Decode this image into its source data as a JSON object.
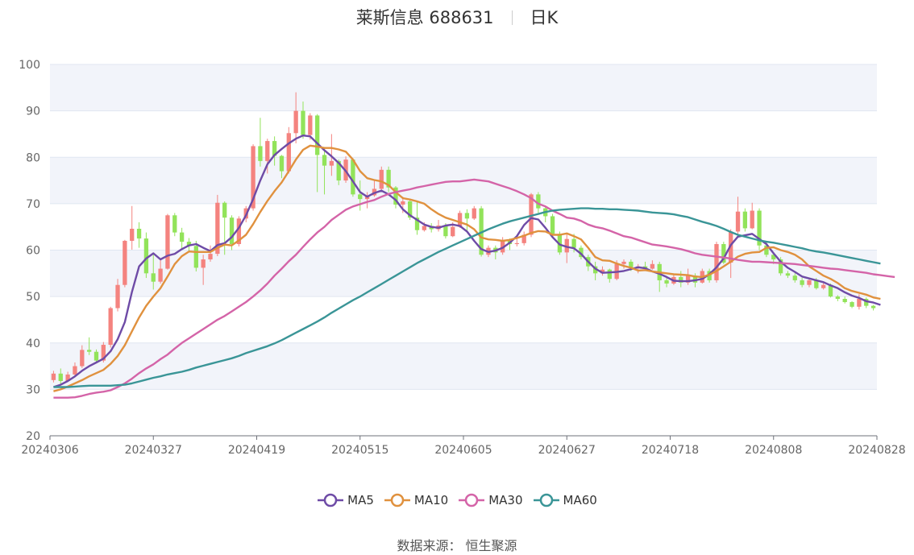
{
  "header": {
    "name": "莱斯信息 688631",
    "period": "日K"
  },
  "source": "数据来源： 恒生聚源",
  "chart_data": {
    "type": "candlestick",
    "ylim": [
      20,
      100
    ],
    "yticks": [
      "20",
      "30",
      "40",
      "50",
      "60",
      "70",
      "80",
      "90",
      "100"
    ],
    "xticks": [
      "20240306",
      "20240327",
      "20240419",
      "20240515",
      "20240605",
      "20240627",
      "20240718",
      "20240808",
      "20240828"
    ],
    "grid": true,
    "band_color": "#f2f4fa",
    "up_color": "#f4837f",
    "down_color": "#92e35a",
    "candles": [
      [
        32.0,
        33.4,
        34.0,
        31.5
      ],
      [
        33.4,
        31.8,
        34.5,
        31.2
      ],
      [
        31.8,
        33.2,
        33.8,
        31.6
      ],
      [
        33.2,
        35.0,
        35.8,
        32.8
      ],
      [
        35.0,
        38.5,
        39.5,
        34.6
      ],
      [
        38.5,
        38.1,
        41.2,
        37.4
      ],
      [
        38.1,
        36.2,
        38.6,
        35.8
      ],
      [
        36.2,
        39.6,
        40.2,
        35.8
      ],
      [
        39.6,
        47.5,
        47.8,
        39.0
      ],
      [
        47.5,
        52.5,
        53.8,
        46.8
      ],
      [
        52.5,
        62.0,
        62.2,
        52.0
      ],
      [
        62.0,
        64.6,
        69.5,
        60.1
      ],
      [
        64.6,
        62.5,
        66.0,
        60.5
      ],
      [
        62.5,
        55.0,
        63.8,
        54.0
      ],
      [
        55.0,
        53.2,
        59.3,
        51.5
      ],
      [
        53.2,
        56.0,
        58.0,
        52.8
      ],
      [
        56.0,
        67.5,
        67.8,
        55.8
      ],
      [
        67.5,
        63.8,
        68.0,
        63.0
      ],
      [
        63.8,
        61.8,
        64.8,
        60.0
      ],
      [
        61.8,
        60.9,
        62.6,
        59.5
      ],
      [
        60.9,
        56.2,
        62.0,
        55.4
      ],
      [
        56.2,
        58.0,
        59.0,
        52.5
      ],
      [
        58.0,
        59.2,
        61.0,
        57.5
      ],
      [
        59.2,
        70.2,
        71.9,
        58.7
      ],
      [
        70.2,
        67.0,
        70.5,
        59.0
      ],
      [
        67.0,
        61.3,
        67.5,
        60.0
      ],
      [
        61.3,
        66.8,
        67.3,
        60.8
      ],
      [
        66.8,
        69.0,
        69.5,
        66.0
      ],
      [
        69.0,
        82.4,
        82.8,
        68.5
      ],
      [
        82.4,
        79.2,
        88.5,
        78.0
      ],
      [
        79.2,
        83.5,
        84.0,
        76.5
      ],
      [
        83.5,
        80.3,
        84.5,
        78.2
      ],
      [
        80.3,
        77.0,
        80.5,
        75.5
      ],
      [
        77.0,
        85.2,
        86.5,
        76.5
      ],
      [
        85.2,
        90.0,
        94.0,
        83.0
      ],
      [
        90.0,
        84.8,
        92.0,
        84.0
      ],
      [
        84.8,
        89.0,
        89.5,
        83.8
      ],
      [
        89.0,
        80.5,
        89.3,
        72.5
      ],
      [
        80.5,
        78.2,
        82.0,
        72.0
      ],
      [
        78.2,
        79.2,
        85.0,
        76.0
      ],
      [
        79.2,
        75.0,
        79.5,
        74.0
      ],
      [
        75.0,
        79.5,
        80.2,
        74.5
      ],
      [
        79.5,
        72.0,
        79.8,
        71.5
      ],
      [
        72.0,
        71.0,
        75.0,
        68.5
      ],
      [
        71.0,
        71.8,
        72.5,
        69.0
      ],
      [
        71.8,
        73.2,
        75.0,
        71.5
      ],
      [
        73.2,
        77.3,
        78.0,
        73.0
      ],
      [
        77.3,
        73.5,
        78.0,
        72.5
      ],
      [
        73.5,
        69.8,
        73.8,
        69.0
      ],
      [
        69.8,
        70.5,
        71.5,
        68.0
      ],
      [
        70.5,
        67.0,
        71.0,
        66.5
      ],
      [
        67.0,
        64.3,
        70.5,
        63.3
      ],
      [
        64.3,
        65.2,
        66.0,
        64.0
      ],
      [
        65.2,
        64.5,
        65.8,
        63.8
      ],
      [
        64.5,
        65.3,
        66.5,
        64.0
      ],
      [
        65.3,
        63.0,
        65.8,
        62.5
      ],
      [
        63.0,
        65.0,
        66.0,
        62.8
      ],
      [
        65.0,
        68.0,
        68.5,
        64.8
      ],
      [
        68.0,
        66.8,
        68.8,
        64.0
      ],
      [
        66.8,
        69.0,
        69.5,
        66.5
      ],
      [
        69.0,
        59.0,
        69.5,
        58.6
      ],
      [
        59.0,
        60.5,
        61.0,
        58.5
      ],
      [
        60.5,
        59.5,
        61.0,
        58.0
      ],
      [
        59.5,
        62.0,
        62.8,
        59.0
      ],
      [
        62.0,
        61.3,
        62.5,
        60.0
      ],
      [
        61.3,
        61.5,
        63.0,
        60.8
      ],
      [
        61.5,
        63.3,
        64.0,
        61.0
      ],
      [
        63.3,
        72.0,
        72.3,
        62.8
      ],
      [
        72.0,
        69.0,
        72.5,
        68.0
      ],
      [
        69.0,
        67.3,
        69.5,
        66.0
      ],
      [
        67.3,
        63.5,
        67.8,
        63.0
      ],
      [
        63.5,
        59.5,
        64.0,
        59.0
      ],
      [
        59.5,
        62.4,
        63.5,
        57.2
      ],
      [
        62.4,
        60.5,
        63.5,
        59.5
      ],
      [
        60.5,
        58.5,
        61.0,
        58.0
      ],
      [
        58.5,
        56.5,
        59.0,
        55.5
      ],
      [
        56.5,
        55.0,
        57.5,
        53.5
      ],
      [
        55.0,
        55.8,
        56.5,
        54.5
      ],
      [
        55.8,
        53.8,
        56.0,
        53.0
      ],
      [
        53.8,
        57.0,
        57.8,
        53.5
      ],
      [
        57.0,
        57.5,
        58.0,
        56.0
      ],
      [
        57.5,
        56.3,
        58.0,
        55.5
      ],
      [
        56.3,
        56.5,
        57.0,
        55.0
      ],
      [
        56.5,
        56.0,
        57.5,
        55.5
      ],
      [
        56.0,
        57.0,
        57.8,
        55.8
      ],
      [
        57.0,
        53.5,
        57.5,
        51.0
      ],
      [
        53.5,
        52.8,
        54.0,
        52.0
      ],
      [
        52.8,
        54.2,
        54.8,
        52.5
      ],
      [
        54.2,
        53.0,
        55.5,
        52.0
      ],
      [
        53.0,
        54.5,
        56.0,
        52.5
      ],
      [
        54.5,
        53.0,
        55.0,
        52.0
      ],
      [
        53.0,
        55.5,
        56.0,
        52.8
      ],
      [
        55.5,
        53.5,
        56.0,
        53.0
      ],
      [
        53.5,
        61.3,
        61.8,
        53.0
      ],
      [
        61.3,
        57.3,
        61.8,
        57.0
      ],
      [
        57.3,
        64.0,
        64.5,
        54.0
      ],
      [
        64.0,
        68.3,
        71.5,
        63.5
      ],
      [
        68.3,
        64.7,
        69.0,
        64.0
      ],
      [
        64.7,
        68.5,
        70.2,
        64.5
      ],
      [
        68.5,
        61.0,
        69.0,
        60.0
      ],
      [
        61.0,
        59.0,
        62.0,
        58.5
      ],
      [
        59.0,
        58.0,
        59.5,
        57.0
      ],
      [
        58.0,
        55.0,
        58.5,
        54.5
      ],
      [
        55.0,
        54.5,
        55.5,
        54.0
      ],
      [
        54.5,
        53.5,
        55.0,
        53.0
      ],
      [
        53.5,
        52.5,
        54.0,
        52.0
      ],
      [
        52.5,
        53.5,
        54.0,
        52.0
      ],
      [
        53.5,
        51.8,
        54.0,
        51.5
      ],
      [
        51.8,
        52.5,
        53.0,
        51.5
      ],
      [
        52.5,
        50.0,
        52.8,
        49.8
      ],
      [
        50.0,
        49.5,
        50.3,
        49.0
      ],
      [
        49.5,
        48.8,
        50.0,
        48.5
      ],
      [
        48.8,
        47.8,
        49.0,
        47.5
      ],
      [
        47.8,
        49.5,
        50.5,
        47.2
      ],
      [
        49.5,
        48.0,
        49.8,
        47.5
      ],
      [
        48.0,
        47.5,
        48.2,
        47.0
      ]
    ],
    "series": [
      {
        "name": "MA5",
        "color": "#6e4ba6",
        "values": [
          30.5,
          31.0,
          31.8,
          32.8,
          34.0,
          35.0,
          35.8,
          36.6,
          38.2,
          40.8,
          44.5,
          51.0,
          56.5,
          58.2,
          59.3,
          58.0,
          58.8,
          59.2,
          60.2,
          61.0,
          61.3,
          60.5,
          59.8,
          61.1,
          61.5,
          62.8,
          64.8,
          67.5,
          71.0,
          75.0,
          78.5,
          80.5,
          81.8,
          83.0,
          84.0,
          84.7,
          84.5,
          83.0,
          81.5,
          80.2,
          78.8,
          77.0,
          74.8,
          72.5,
          71.5,
          72.3,
          72.8,
          72.0,
          70.8,
          68.8,
          67.5,
          66.5,
          65.5,
          65.0,
          64.8,
          65.3,
          65.5,
          65.2,
          64.0,
          62.0,
          60.2,
          59.6,
          59.9,
          60.5,
          61.6,
          63.0,
          65.4,
          66.9,
          66.6,
          64.8,
          62.8,
          61.2,
          60.7,
          60.4,
          59.2,
          57.5,
          56.0,
          55.1,
          55.2,
          55.3,
          55.5,
          55.9,
          56.3,
          56.1,
          55.4,
          54.9,
          54.2,
          53.4,
          53.3,
          53.3,
          53.5,
          53.8,
          54.8,
          56.3,
          58.2,
          61.1,
          62.9,
          63.2,
          63.5,
          62.4,
          61.3,
          59.3,
          57.5,
          56.2,
          55.3,
          54.3,
          53.9,
          53.5,
          53.1,
          52.4,
          51.8,
          50.9,
          50.2,
          49.7,
          49.0,
          48.7,
          48.2
        ]
      },
      {
        "name": "MA10",
        "color": "#e0913e",
        "values": [
          29.6,
          30.0,
          30.6,
          31.3,
          32.0,
          32.8,
          33.5,
          34.2,
          35.5,
          37.2,
          39.5,
          42.5,
          45.5,
          48.0,
          50.0,
          51.8,
          54.3,
          57.0,
          58.7,
          59.7,
          59.6,
          59.6,
          59.6,
          60.5,
          61.2,
          61.0,
          62.1,
          63.3,
          65.6,
          68.2,
          70.6,
          72.7,
          74.6,
          77.0,
          79.5,
          81.6,
          82.5,
          82.3,
          82.0,
          82.0,
          81.7,
          81.2,
          79.5,
          77.0,
          75.5,
          75.1,
          74.8,
          74.0,
          72.5,
          71.2,
          70.9,
          70.5,
          70.0,
          68.8,
          67.8,
          67.0,
          66.5,
          66.0,
          65.5,
          64.5,
          62.7,
          62.3,
          62.2,
          62.0,
          62.2,
          62.6,
          63.1,
          63.7,
          64.1,
          64.0,
          63.3,
          63.3,
          63.6,
          63.0,
          62.3,
          60.5,
          58.5,
          57.8,
          57.7,
          57.1,
          56.6,
          56.2,
          55.6,
          55.7,
          55.4,
          55.2,
          55.0,
          54.8,
          54.7,
          54.6,
          54.3,
          54.2,
          54.7,
          55.5,
          56.5,
          57.5,
          58.6,
          59.2,
          59.5,
          59.6,
          60.5,
          60.6,
          60.0,
          59.6,
          59.0,
          58.0,
          56.5,
          55.5,
          54.5,
          53.8,
          52.9,
          51.8,
          51.2,
          50.8,
          50.4,
          49.8,
          49.5
        ]
      },
      {
        "name": "MA30",
        "color": "#d464a8",
        "values": [
          28.2,
          28.2,
          28.2,
          28.3,
          28.6,
          29.0,
          29.3,
          29.5,
          29.8,
          30.5,
          31.3,
          32.3,
          33.5,
          34.5,
          35.4,
          36.5,
          37.5,
          38.8,
          40.0,
          41.0,
          42.0,
          43.0,
          44.0,
          45.0,
          45.8,
          46.8,
          47.8,
          48.8,
          50.0,
          51.3,
          52.8,
          54.5,
          56.0,
          57.6,
          59.0,
          60.7,
          62.3,
          63.8,
          65.0,
          66.5,
          67.6,
          68.7,
          69.4,
          69.9,
          70.4,
          70.8,
          71.5,
          72.1,
          72.5,
          72.8,
          73.1,
          73.5,
          73.8,
          74.1,
          74.4,
          74.7,
          74.8,
          74.8,
          75.0,
          75.2,
          75.0,
          74.8,
          74.3,
          73.8,
          73.3,
          72.7,
          72.0,
          71.2,
          70.0,
          69.4,
          68.5,
          67.8,
          67.0,
          66.8,
          66.3,
          65.5,
          65.0,
          64.7,
          64.2,
          63.6,
          63.0,
          62.7,
          62.2,
          61.7,
          61.2,
          61.0,
          60.8,
          60.5,
          60.2,
          59.8,
          59.3,
          59.0,
          58.8,
          58.6,
          58.4,
          58.2,
          57.9,
          57.7,
          57.5,
          57.5,
          57.4,
          57.3,
          57.2,
          57.1,
          57.0,
          56.8,
          56.6,
          56.4,
          56.2,
          56.0,
          55.9,
          55.7,
          55.5,
          55.3,
          55.1,
          54.8,
          54.6,
          54.4,
          54.2
        ]
      },
      {
        "name": "MA60",
        "color": "#3a9597",
        "values": [
          30.5,
          30.5,
          30.5,
          30.6,
          30.7,
          30.8,
          30.8,
          30.8,
          30.8,
          30.9,
          31.0,
          31.3,
          31.7,
          32.1,
          32.5,
          32.8,
          33.2,
          33.5,
          33.8,
          34.2,
          34.7,
          35.1,
          35.5,
          35.9,
          36.3,
          36.7,
          37.2,
          37.8,
          38.3,
          38.8,
          39.3,
          39.9,
          40.6,
          41.4,
          42.2,
          43.0,
          43.8,
          44.6,
          45.5,
          46.5,
          47.4,
          48.3,
          49.2,
          50.0,
          50.9,
          51.8,
          52.7,
          53.6,
          54.5,
          55.4,
          56.3,
          57.2,
          58.0,
          58.8,
          59.6,
          60.3,
          61.0,
          61.7,
          62.4,
          63.1,
          63.8,
          64.5,
          65.1,
          65.7,
          66.2,
          66.6,
          67.0,
          67.4,
          67.8,
          68.2,
          68.5,
          68.7,
          68.8,
          68.9,
          69.0,
          69.0,
          68.9,
          68.9,
          68.8,
          68.8,
          68.7,
          68.6,
          68.5,
          68.3,
          68.1,
          68.0,
          67.9,
          67.7,
          67.4,
          67.1,
          66.6,
          66.1,
          65.7,
          65.2,
          64.6,
          63.9,
          63.3,
          62.9,
          62.5,
          62.1,
          61.8,
          61.6,
          61.3,
          61.0,
          60.7,
          60.4,
          60.0,
          59.7,
          59.5,
          59.2,
          58.9,
          58.6,
          58.3,
          58.0,
          57.7,
          57.4,
          57.1
        ]
      }
    ]
  }
}
